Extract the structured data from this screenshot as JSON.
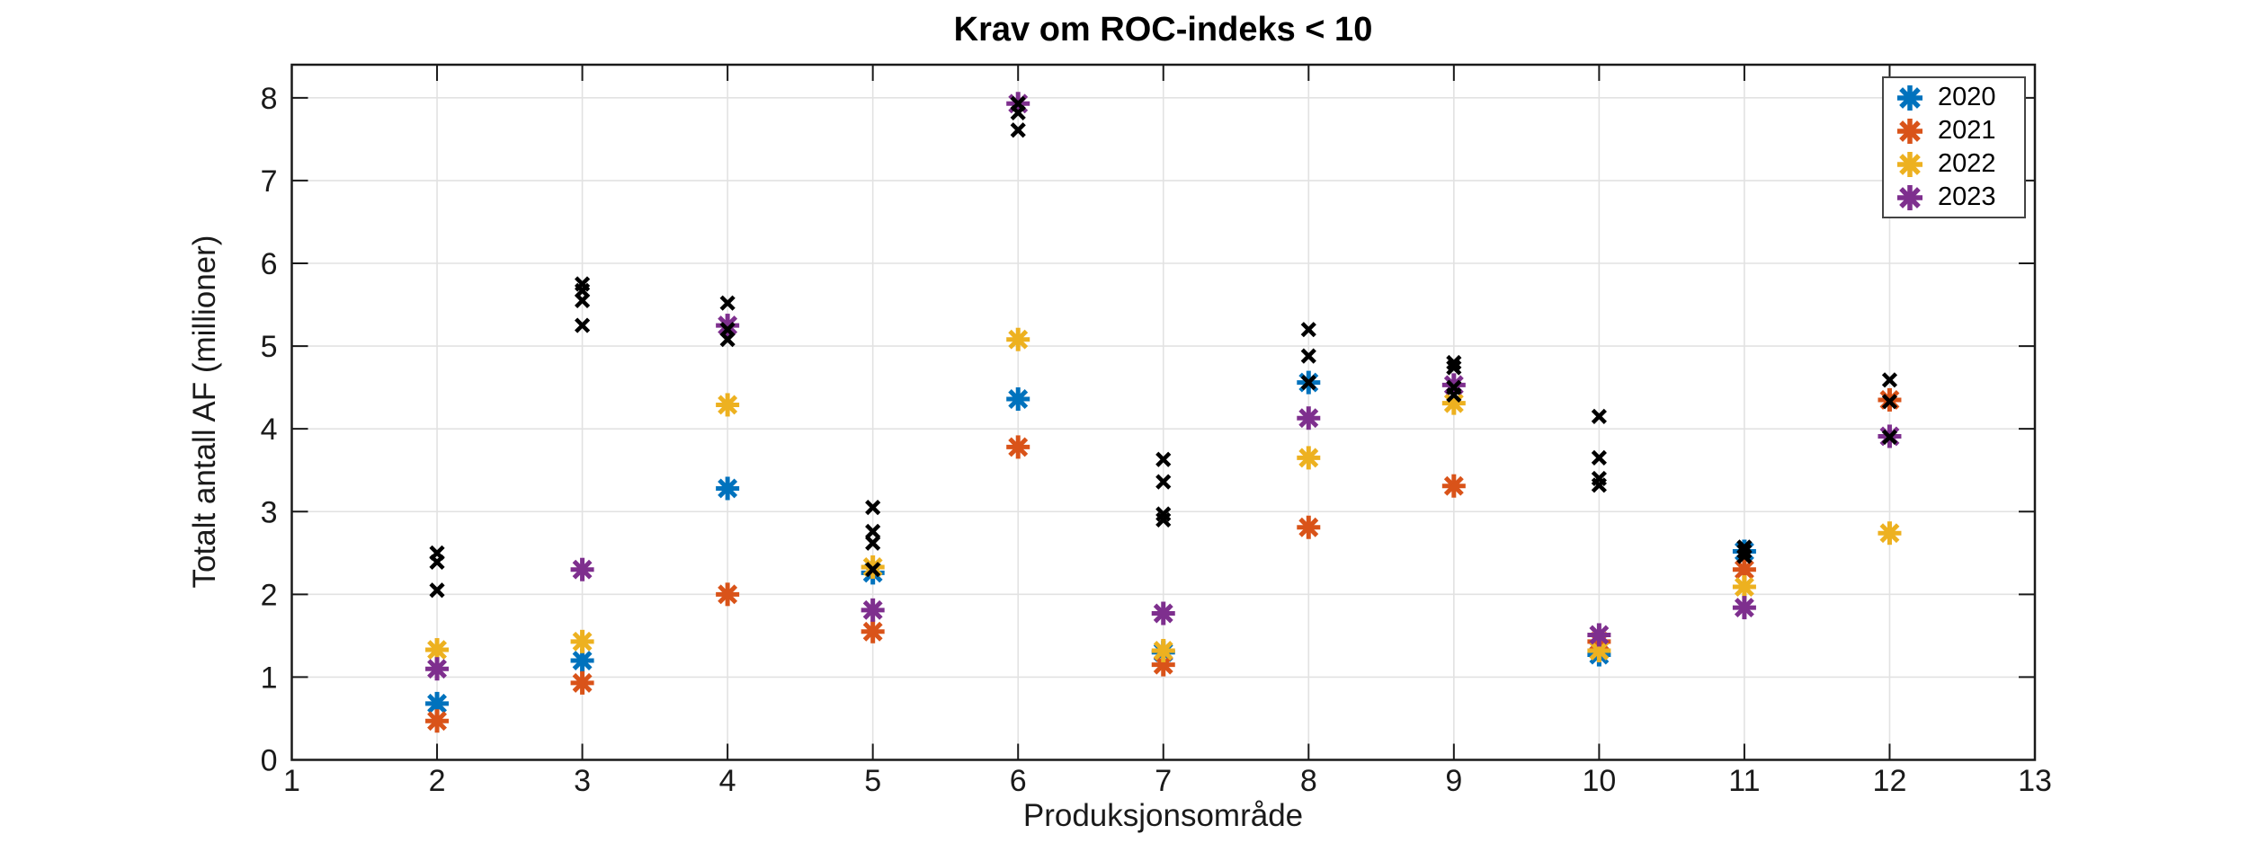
{
  "styles": {
    "grid_color": "#E2E2E2",
    "axis_color": "#1a1a1a",
    "tick_label_color": "#1a1a1a",
    "background": "#FFFFFF"
  },
  "chart_data": {
    "type": "scatter",
    "title": "Krav om ROC-indeks < 10",
    "xlabel": "Produksjonsområde",
    "ylabel": "Totalt antall AF (millioner)",
    "xlim": [
      1,
      13
    ],
    "ylim": [
      0,
      8.4
    ],
    "xticks": [
      1,
      2,
      3,
      4,
      5,
      6,
      7,
      8,
      9,
      10,
      11,
      12,
      13
    ],
    "yticks": [
      0,
      1,
      2,
      3,
      4,
      5,
      6,
      7,
      8
    ],
    "grid": true,
    "legend_position": "top-right",
    "series": [
      {
        "name": "2020",
        "color": "#0072BD",
        "marker": "asterisk",
        "points": [
          [
            2,
            0.68
          ],
          [
            3,
            1.2
          ],
          [
            4,
            3.28
          ],
          [
            5,
            2.26
          ],
          [
            6,
            4.36
          ],
          [
            7,
            1.3
          ],
          [
            8,
            4.56
          ],
          [
            10,
            1.27
          ],
          [
            11,
            2.52
          ]
        ]
      },
      {
        "name": "2021",
        "color": "#D95319",
        "marker": "asterisk",
        "points": [
          [
            2,
            0.47
          ],
          [
            3,
            0.93
          ],
          [
            4,
            2.0
          ],
          [
            5,
            1.55
          ],
          [
            6,
            3.78
          ],
          [
            7,
            1.15
          ],
          [
            8,
            2.81
          ],
          [
            9,
            3.31
          ],
          [
            10,
            1.43
          ],
          [
            11,
            2.3
          ],
          [
            12,
            4.35
          ]
        ]
      },
      {
        "name": "2022",
        "color": "#EDB120",
        "marker": "asterisk",
        "points": [
          [
            2,
            1.33
          ],
          [
            3,
            1.43
          ],
          [
            4,
            4.29
          ],
          [
            5,
            2.33
          ],
          [
            6,
            5.08
          ],
          [
            7,
            1.32
          ],
          [
            8,
            3.65
          ],
          [
            9,
            4.31
          ],
          [
            10,
            1.32
          ],
          [
            11,
            2.09
          ],
          [
            12,
            2.74
          ]
        ]
      },
      {
        "name": "2023",
        "color": "#7E2F8E",
        "marker": "asterisk",
        "points": [
          [
            2,
            1.1
          ],
          [
            3,
            2.3
          ],
          [
            4,
            5.25
          ],
          [
            5,
            1.81
          ],
          [
            6,
            7.93
          ],
          [
            7,
            1.77
          ],
          [
            8,
            4.13
          ],
          [
            9,
            4.53
          ],
          [
            10,
            1.51
          ],
          [
            11,
            1.84
          ],
          [
            12,
            3.91
          ]
        ]
      }
    ],
    "unlabeled_series": {
      "name": "black-x-markers",
      "color": "#000000",
      "marker": "x",
      "points": [
        [
          2,
          2.5
        ],
        [
          2,
          2.39
        ],
        [
          2,
          2.05
        ],
        [
          3,
          5.75
        ],
        [
          3,
          5.67
        ],
        [
          3,
          5.55
        ],
        [
          3,
          5.25
        ],
        [
          4,
          5.52
        ],
        [
          4,
          5.2
        ],
        [
          4,
          5.08
        ],
        [
          5,
          3.05
        ],
        [
          5,
          2.76
        ],
        [
          5,
          2.62
        ],
        [
          5,
          2.3
        ],
        [
          6,
          7.93
        ],
        [
          6,
          7.82
        ],
        [
          6,
          7.61
        ],
        [
          7,
          3.63
        ],
        [
          7,
          3.36
        ],
        [
          7,
          2.97
        ],
        [
          7,
          2.9
        ],
        [
          8,
          5.2
        ],
        [
          8,
          4.88
        ],
        [
          8,
          4.56
        ],
        [
          9,
          4.8
        ],
        [
          9,
          4.74
        ],
        [
          9,
          4.5
        ],
        [
          9,
          4.41
        ],
        [
          10,
          4.15
        ],
        [
          10,
          3.65
        ],
        [
          10,
          3.4
        ],
        [
          10,
          3.32
        ],
        [
          11,
          2.57
        ],
        [
          11,
          2.52
        ],
        [
          11,
          2.46
        ],
        [
          12,
          4.59
        ],
        [
          12,
          4.33
        ],
        [
          12,
          3.9
        ]
      ]
    }
  }
}
